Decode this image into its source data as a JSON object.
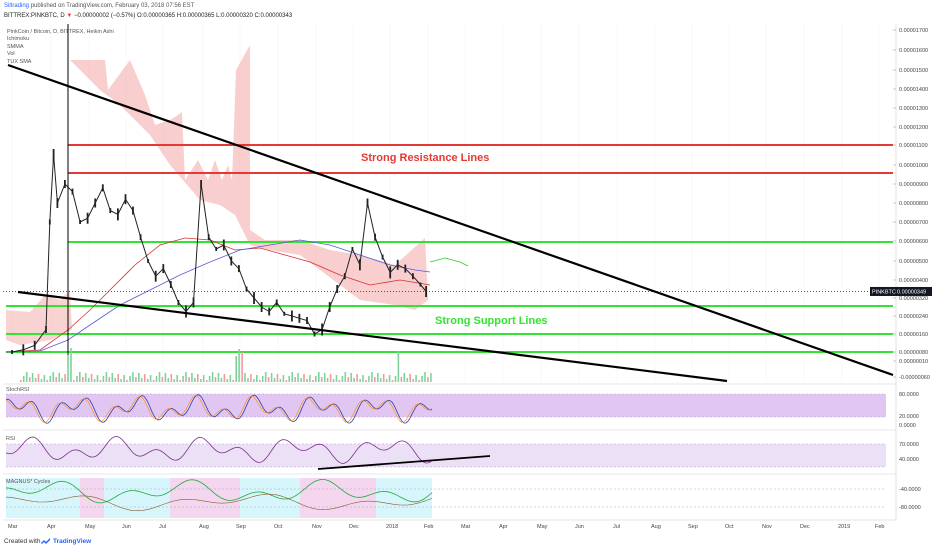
{
  "header": {
    "author": "Siltrading",
    "published": "published on TradingView.com, February 03, 2018 07:56 EST",
    "symbol_line": "BITTREX:PINKBTC, D",
    "change_arrow": "▼",
    "change": "−0.00000002 (−0.57%)",
    "ohlc": "O:0.00000365 H:0.00000365 L:0.00000320 C:0.00000343"
  },
  "legend": {
    "title": "PinkCoin / Bitcoin, D, BITTREX, Heikin Ashi",
    "items": [
      "Ichimoku",
      "SMMA",
      "Vol",
      "TUX SMA"
    ]
  },
  "annotations": {
    "resistance": "Strong Resistance Lines",
    "support": "Strong Support Lines",
    "price_tag": "PINKBTC",
    "price_value": "0.00000349"
  },
  "panes": {
    "stochrsi": "StochRSI",
    "rsi": "RSI",
    "magnus": "MAGNUS* Cycles"
  },
  "footer": {
    "created_with": "Created with",
    "brand": "TradingView"
  },
  "colors": {
    "cloud": "#f4a6a6",
    "resistance": "#e53935",
    "support": "#33e333",
    "trend": "#000000",
    "candles": "#222222",
    "stoch_fill": "#e2c6f2",
    "rsi_fill": "#ece0f6",
    "magnus_cyan": "#d7f6fb",
    "magnus_pink": "#f4d6ee"
  },
  "chart_data": {
    "type": "line",
    "title": "PinkCoin / Bitcoin, D, BITTREX, Heikin Ashi",
    "x_tick_labels": [
      "Mar",
      "Apr",
      "May",
      "Jun",
      "Jul",
      "Aug",
      "Sep",
      "Oct",
      "Nov",
      "Dec",
      "2018",
      "Feb",
      "Mar",
      "Apr",
      "May",
      "Jun",
      "Jul",
      "Aug",
      "Sep",
      "Oct",
      "Nov",
      "Dec",
      "2019",
      "Feb"
    ],
    "y_tick_labels": [
      "0.00001700",
      "0.00001600",
      "0.00001500",
      "0.00001400",
      "0.00001300",
      "0.00001200",
      "0.00001100",
      "0.00001000",
      "0.00000900",
      "0.00000800",
      "0.00000700",
      "0.00000600",
      "0.00000500",
      "0.00000400",
      "0.00000320",
      "0.00000240",
      "0.00000160",
      "0.00000080",
      "0.00000010",
      "-0.00000060"
    ],
    "y_tick_values": [
      1700,
      1600,
      1500,
      1400,
      1300,
      1200,
      1100,
      1000,
      900,
      800,
      700,
      600,
      500,
      400,
      320,
      240,
      160,
      80,
      10,
      -60
    ],
    "stoch_labels": [
      "80.0000",
      "20.0000",
      "0.0000"
    ],
    "rsi_labels": [
      "70.0000",
      "40.0000"
    ],
    "magnus_labels": [
      "-40.0000",
      "-80.0000"
    ],
    "resistance_levels": [
      1100,
      960
    ],
    "support_levels": [
      620,
      260,
      180,
      100
    ],
    "current_price": 349,
    "price_series": {
      "name": "PINKBTC",
      "x": [
        0,
        0.3,
        0.6,
        0.9,
        1.0,
        1.1,
        1.2,
        1.4,
        1.6,
        1.8,
        2.0,
        2.2,
        2.4,
        2.6,
        2.8,
        3.0,
        3.2,
        3.4,
        3.6,
        3.8,
        4.0,
        4.2,
        4.4,
        4.6,
        4.8,
        5.0,
        5.2,
        5.4,
        5.6,
        5.8,
        6.0,
        6.2,
        6.4,
        6.6,
        6.8,
        7.0,
        7.2,
        7.4,
        7.6,
        7.8,
        8.0,
        8.2,
        8.4,
        8.6,
        8.8,
        9.0,
        9.2,
        9.4,
        9.6,
        9.8,
        10.0,
        10.2,
        10.4,
        10.6,
        10.8,
        10.95
      ],
      "y": [
        80,
        90,
        110,
        180,
        700,
        1050,
        800,
        900,
        860,
        700,
        720,
        800,
        880,
        760,
        740,
        820,
        760,
        620,
        500,
        420,
        460,
        380,
        300,
        260,
        300,
        900,
        620,
        560,
        580,
        500,
        460,
        360,
        320,
        280,
        260,
        300,
        250,
        240,
        230,
        220,
        160,
        180,
        280,
        360,
        420,
        560,
        480,
        800,
        620,
        520,
        440,
        480,
        460,
        420,
        380,
        349
      ]
    }
  }
}
